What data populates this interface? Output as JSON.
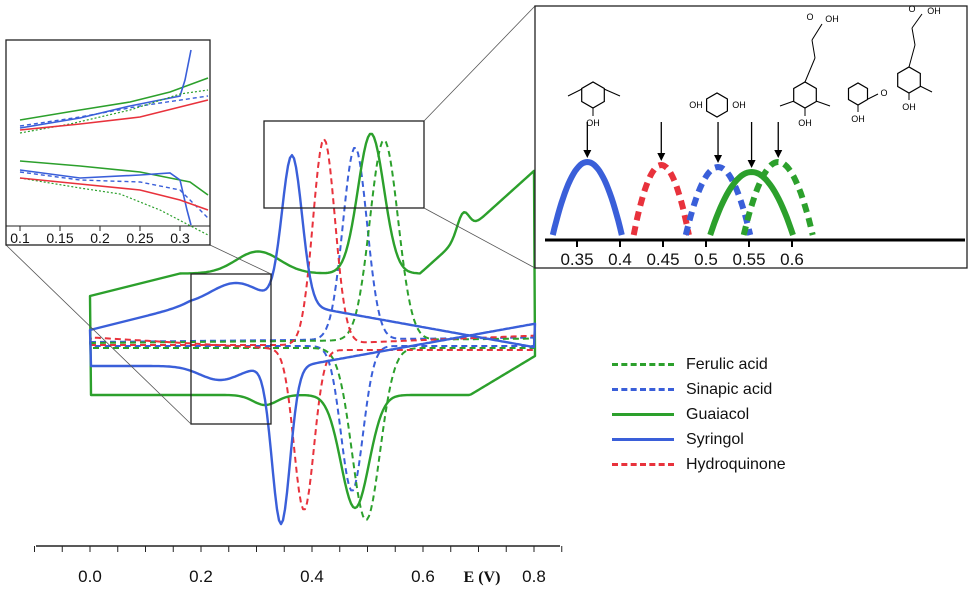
{
  "colors": {
    "green": "#2ca02c",
    "blue": "#3a5fd9",
    "red": "#e8323c",
    "frame": "#222222"
  },
  "chart_data": [
    {
      "type": "line",
      "title": "",
      "xlabel": "E (V)",
      "ylabel": "",
      "xlim": [
        -0.1,
        0.85
      ],
      "xticks": [
        0.0,
        0.2,
        0.4,
        0.6,
        0.8
      ],
      "xtick_labels": [
        "0.0",
        "0.2",
        "0.4",
        "0.6",
        "0.8"
      ],
      "grid": false,
      "legend_position": "right",
      "series": [
        {
          "name": "Ferulic acid",
          "color": "#2ca02c",
          "dash": true,
          "anodic_peak_E": 0.53,
          "cathodic_peak_E": 0.5
        },
        {
          "name": "Sinapic acid",
          "color": "#3a5fd9",
          "dash": true,
          "anodic_peak_E": 0.47,
          "cathodic_peak_E": 0.47
        },
        {
          "name": "Guaiacol",
          "color": "#2ca02c",
          "dash": false,
          "anodic_peak_E": 0.51,
          "cathodic_peak_E": 0.48
        },
        {
          "name": "Syringol",
          "color": "#3a5fd9",
          "dash": false,
          "anodic_peak_E": 0.37,
          "cathodic_peak_E": 0.34
        },
        {
          "name": "Hydroquinone",
          "color": "#e8323c",
          "dash": true,
          "anodic_peak_E": 0.42,
          "cathodic_peak_E": 0.39
        }
      ]
    },
    {
      "type": "line",
      "title": "",
      "position": "inset-left",
      "xlim": [
        0.1,
        0.33
      ],
      "xticks": [
        0.1,
        0.15,
        0.2,
        0.25,
        0.3
      ],
      "xtick_labels": [
        "0.1",
        "0.15",
        "0.2",
        "0.25",
        "0.3"
      ]
    },
    {
      "type": "line",
      "title": "",
      "position": "inset-right",
      "xlim": [
        0.33,
        0.63
      ],
      "xticks": [
        0.35,
        0.4,
        0.45,
        0.5,
        0.55,
        0.6
      ],
      "xtick_labels": [
        "0.35",
        "0.4",
        "0.45",
        "0.5",
        "0.55",
        "0.6"
      ],
      "peaks": [
        {
          "compound": "Syringol",
          "E": 0.362,
          "color": "#3a5fd9",
          "dash": false
        },
        {
          "compound": "Hydroquinone",
          "E": 0.448,
          "color": "#e8323c",
          "dash": true
        },
        {
          "compound": "Sinapic acid",
          "E": 0.514,
          "color": "#3a5fd9",
          "dash": true
        },
        {
          "compound": "Guaiacol",
          "E": 0.553,
          "color": "#2ca02c",
          "dash": false
        },
        {
          "compound": "Ferulic acid",
          "E": 0.584,
          "color": "#2ca02c",
          "dash": true
        }
      ]
    }
  ],
  "structure_labels": {
    "oh": "OH",
    "cooh": "OH",
    "o": "O"
  },
  "legend": [
    {
      "label": "Ferulic acid",
      "color": "#2ca02c",
      "dash": true
    },
    {
      "label": "Sinapic acid",
      "color": "#3a5fd9",
      "dash": true
    },
    {
      "label": "Guaiacol",
      "color": "#2ca02c",
      "dash": false
    },
    {
      "label": "Syringol",
      "color": "#3a5fd9",
      "dash": false
    },
    {
      "label": "Hydroquinone",
      "color": "#e8323c",
      "dash": true
    }
  ]
}
